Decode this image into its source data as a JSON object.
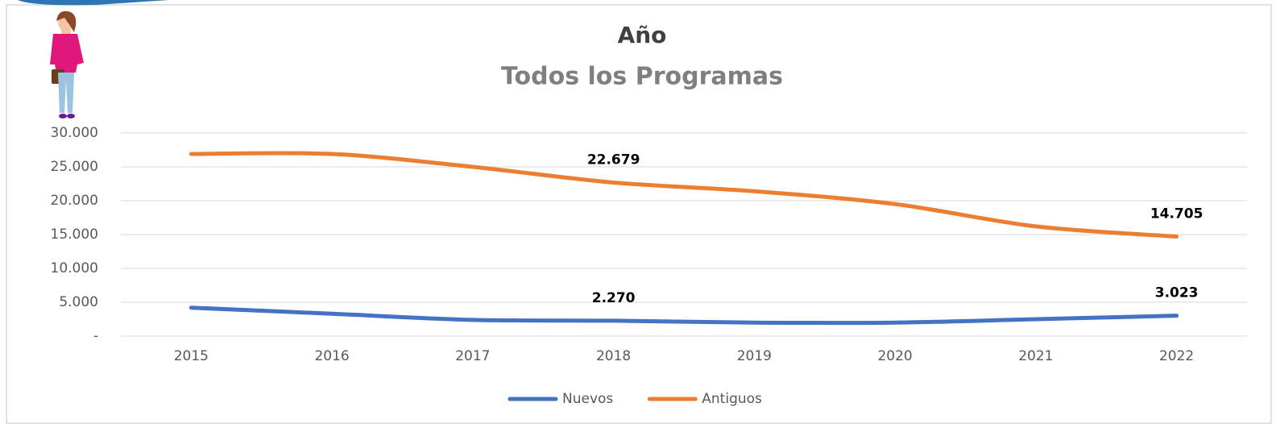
{
  "chart_data": {
    "type": "line",
    "title": "Año",
    "subtitle": "Todos los Programas",
    "categories": [
      "2015",
      "2016",
      "2017",
      "2018",
      "2019",
      "2020",
      "2021",
      "2022"
    ],
    "series": [
      {
        "name": "Nuevos",
        "color": "#4472c4",
        "values": [
          4200,
          3300,
          2400,
          2270,
          2000,
          2000,
          2500,
          3023
        ],
        "value_labels": [
          null,
          null,
          null,
          "2.270",
          null,
          null,
          null,
          "3.023"
        ]
      },
      {
        "name": "Antiguos",
        "color": "#ed7d31",
        "values": [
          26900,
          26900,
          25000,
          22679,
          21400,
          19500,
          16200,
          14705
        ],
        "value_labels": [
          null,
          null,
          null,
          "22.679",
          null,
          null,
          null,
          "14.705"
        ]
      }
    ],
    "ylim": [
      0,
      30000
    ],
    "yticks": [
      {
        "value": 0,
        "label": "-"
      },
      {
        "value": 5000,
        "label": "5.000"
      },
      {
        "value": 10000,
        "label": "10.000"
      },
      {
        "value": 15000,
        "label": "15.000"
      },
      {
        "value": 20000,
        "label": "20.000"
      },
      {
        "value": 25000,
        "label": "25.000"
      },
      {
        "value": 30000,
        "label": "30.000"
      }
    ],
    "grid": true,
    "legend": "bottom"
  }
}
